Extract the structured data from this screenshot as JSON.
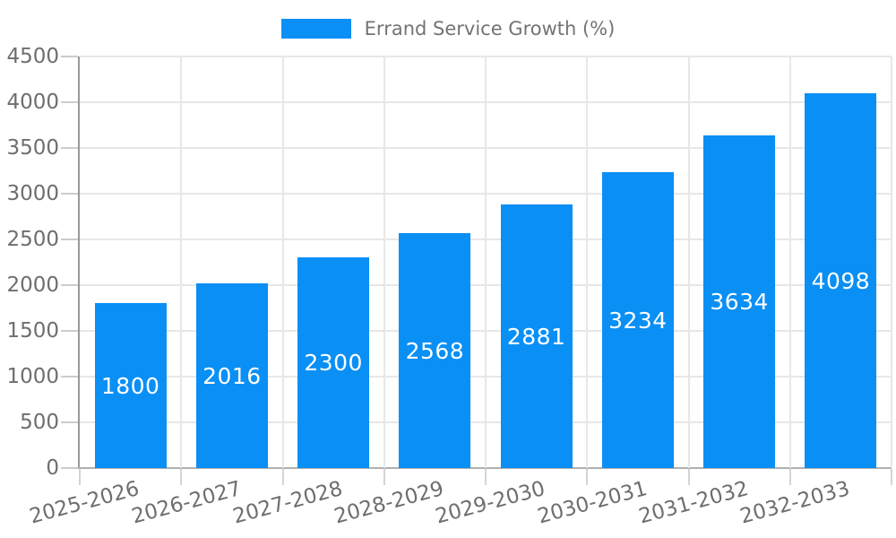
{
  "legend": {
    "series_label": "Errand Service Growth (%)"
  },
  "chart_data": {
    "type": "bar",
    "title": "Errand Service Growth (%)",
    "series_name": "Errand Service Growth (%)",
    "categories": [
      "2025-2026",
      "2026-2027",
      "2027-2028",
      "2028-2029",
      "2029-2030",
      "2030-2031",
      "2031-2032",
      "2032-2033"
    ],
    "values": [
      1800,
      2016,
      2300,
      2568,
      2881,
      3234,
      3634,
      4098
    ],
    "data_labels": [
      "1800",
      "2016",
      "2300",
      "2568",
      "2881",
      "3234",
      "3634",
      "4098"
    ],
    "xlabel": "",
    "ylabel": "",
    "ylim": [
      0,
      4500
    ],
    "ytick_step": 500,
    "yticks": [
      0,
      500,
      1000,
      1500,
      2000,
      2500,
      3000,
      3500,
      4000,
      4500
    ],
    "x_label_rotation_deg": -15,
    "legend_position": "top-center",
    "grid": {
      "horizontal": true,
      "vertical": true
    },
    "colors": {
      "bar": "#0a8ff5",
      "data_label_text": "#ffffff",
      "axis_label_text": "#6e6e6e",
      "legend_text": "#737373",
      "gridline": "#e7e7e7",
      "axis_line": "#b0b0b0"
    }
  }
}
